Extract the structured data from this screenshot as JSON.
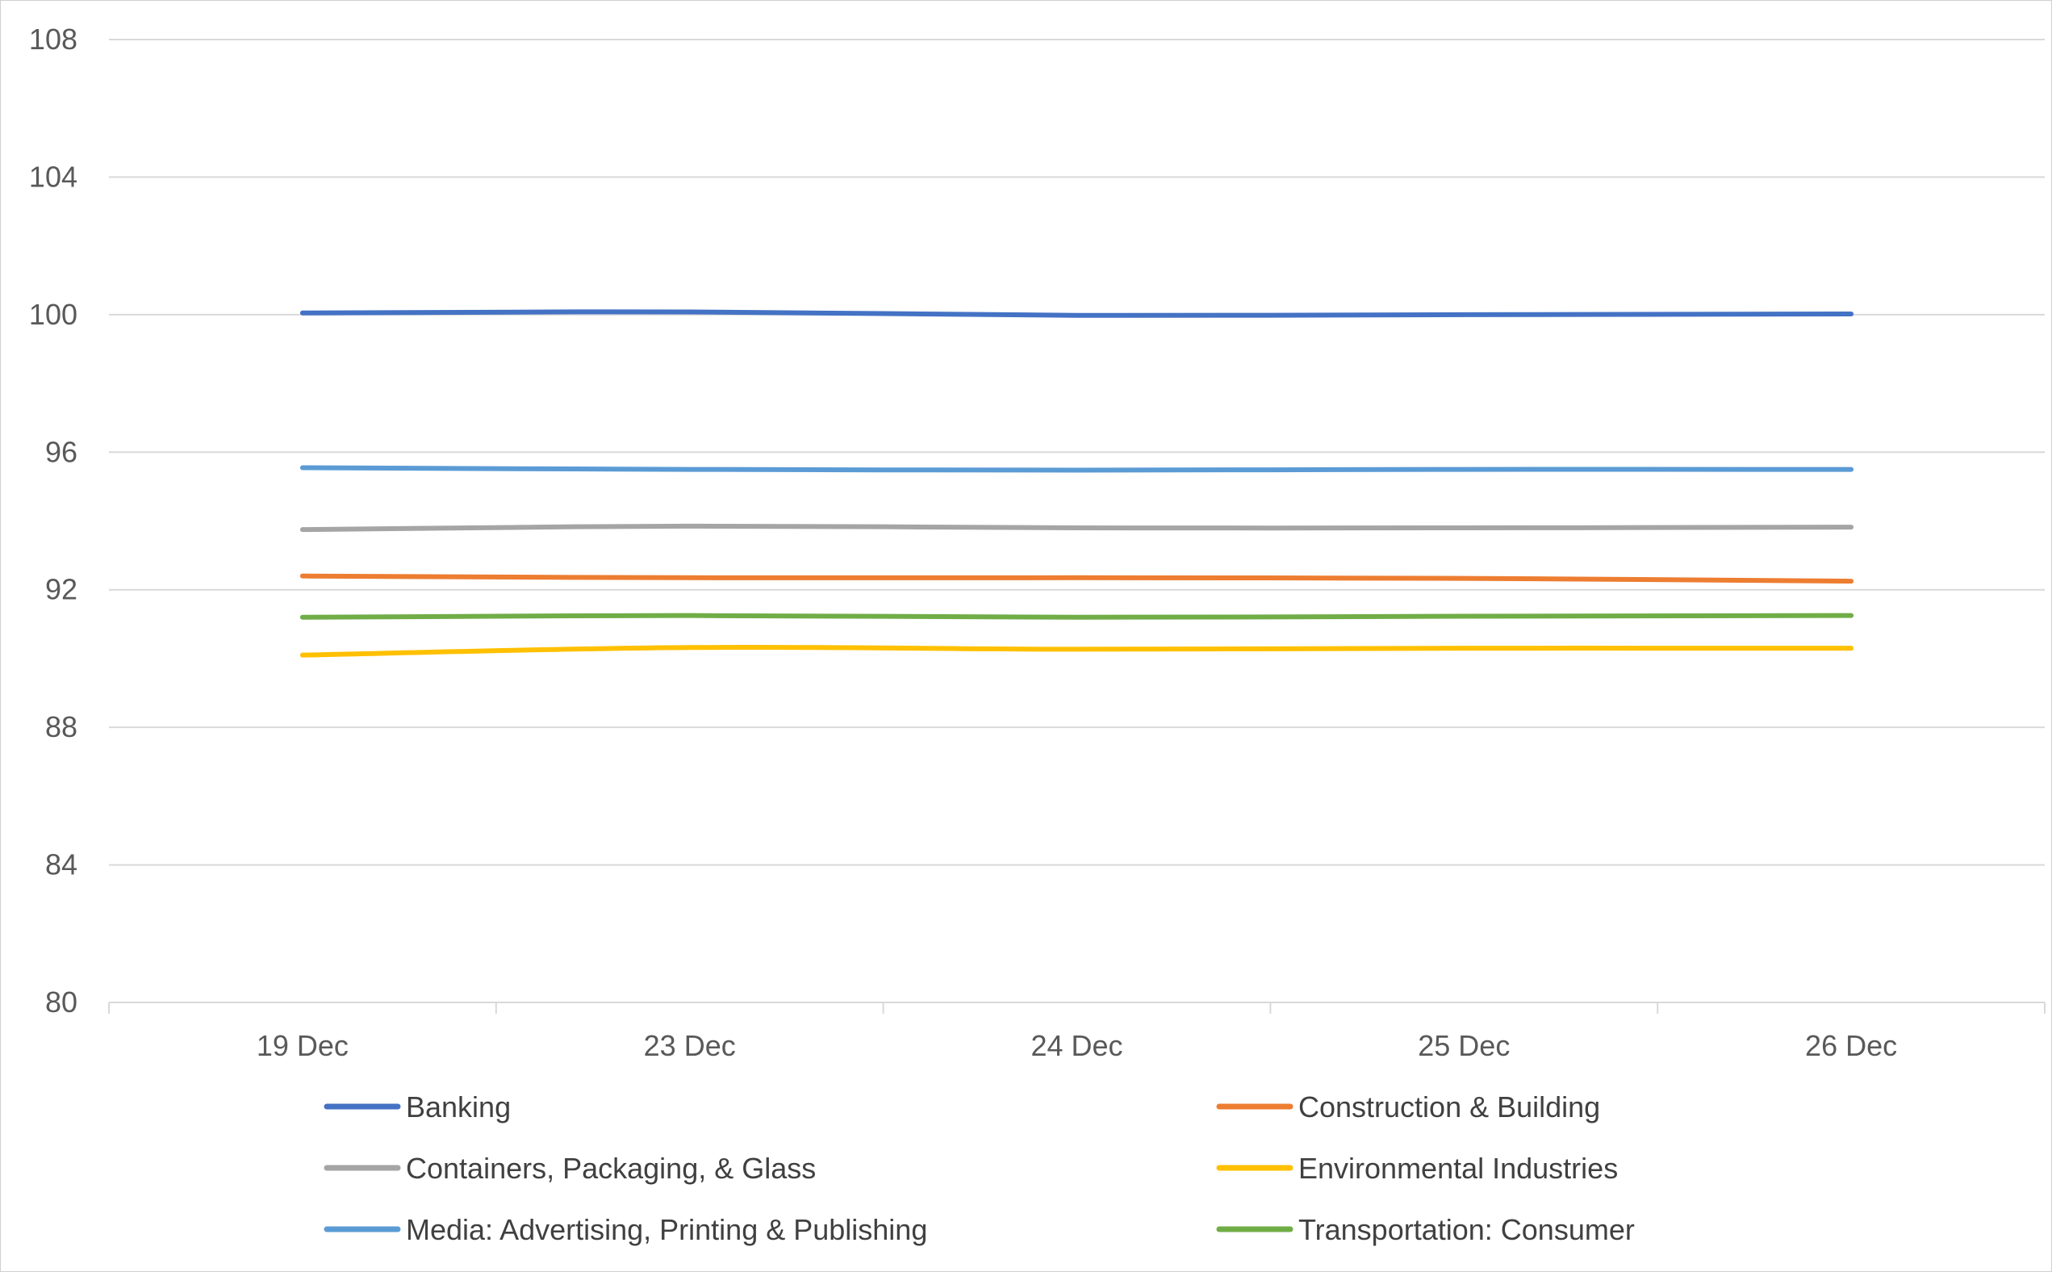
{
  "chart_data": {
    "type": "line",
    "title": "",
    "xlabel": "",
    "ylabel": "",
    "categories": [
      "19 Dec",
      "23 Dec",
      "24 Dec",
      "25 Dec",
      "26 Dec"
    ],
    "ylim": [
      80,
      108
    ],
    "yticks": [
      80,
      84,
      88,
      92,
      96,
      100,
      104,
      108
    ],
    "grid": true,
    "legend_position": "bottom",
    "series": [
      {
        "name": "Banking",
        "color": "#4472C4",
        "values": [
          100.05,
          100.08,
          99.98,
          100.0,
          100.02
        ]
      },
      {
        "name": "Construction & Building",
        "color": "#ED7D31",
        "values": [
          92.4,
          92.35,
          92.35,
          92.33,
          92.25
        ]
      },
      {
        "name": "Containers, Packaging, & Glass",
        "color": "#A5A5A5",
        "values": [
          93.75,
          93.85,
          93.8,
          93.8,
          93.82
        ]
      },
      {
        "name": "Environmental Industries",
        "color": "#FFC000",
        "values": [
          90.1,
          90.32,
          90.27,
          90.3,
          90.3
        ]
      },
      {
        "name": "Media: Advertising, Printing & Publishing",
        "color": "#5B9BD5",
        "values": [
          95.55,
          95.5,
          95.48,
          95.5,
          95.5
        ]
      },
      {
        "name": "Transportation: Consumer",
        "color": "#70AD47",
        "values": [
          91.2,
          91.25,
          91.2,
          91.23,
          91.25
        ]
      }
    ]
  }
}
